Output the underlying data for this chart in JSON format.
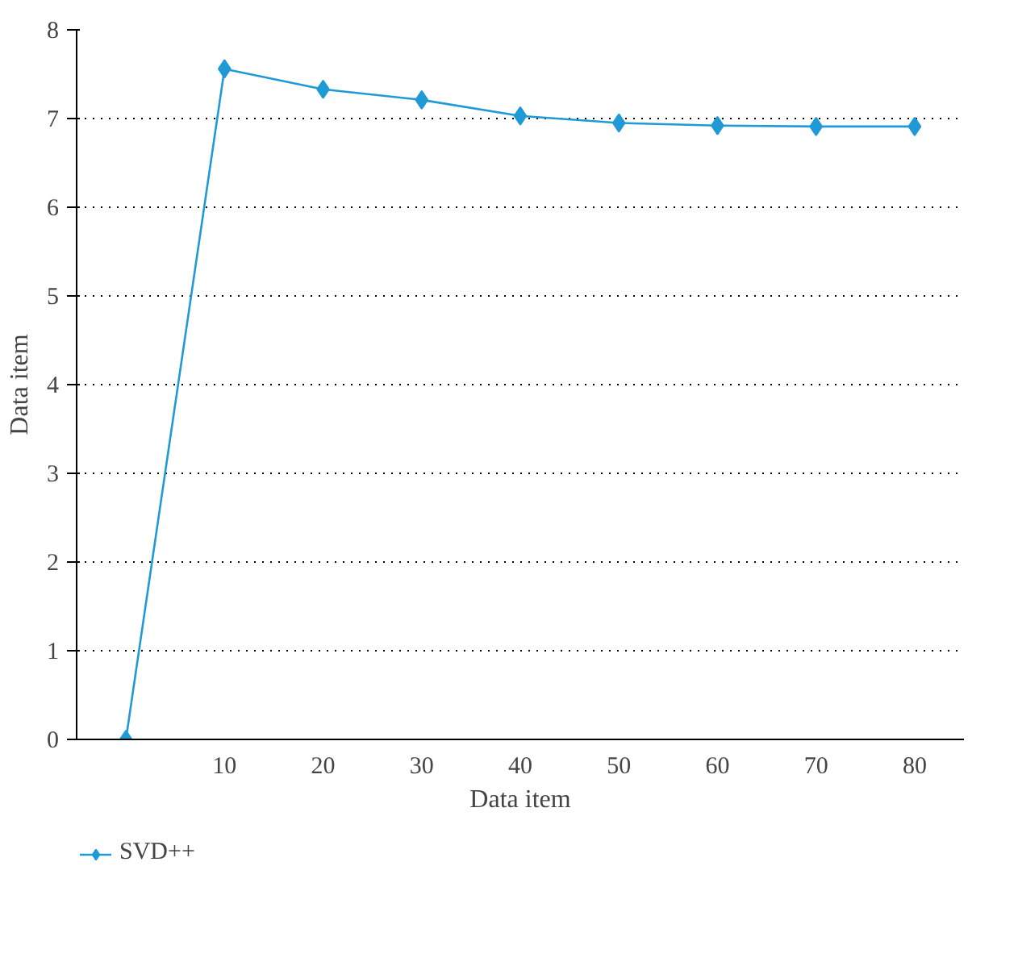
{
  "chart_data": {
    "type": "line",
    "xlabel": "Data item",
    "ylabel": "Data item",
    "categories": [
      null,
      "10",
      "20",
      "30",
      "40",
      "50",
      "60",
      "70",
      "80"
    ],
    "series": [
      {
        "name": "SVD++",
        "color": "#1f9ad6",
        "values": [
          0,
          7.56,
          7.33,
          7.21,
          7.03,
          6.95,
          6.92,
          6.91,
          6.91
        ]
      }
    ],
    "ylim": [
      0,
      8
    ],
    "yticks": [
      0,
      1,
      2,
      3,
      4,
      5,
      6,
      7,
      8
    ],
    "grid": "y",
    "legend": "bottom left",
    "marker": "diamond",
    "line_style": "solid"
  }
}
